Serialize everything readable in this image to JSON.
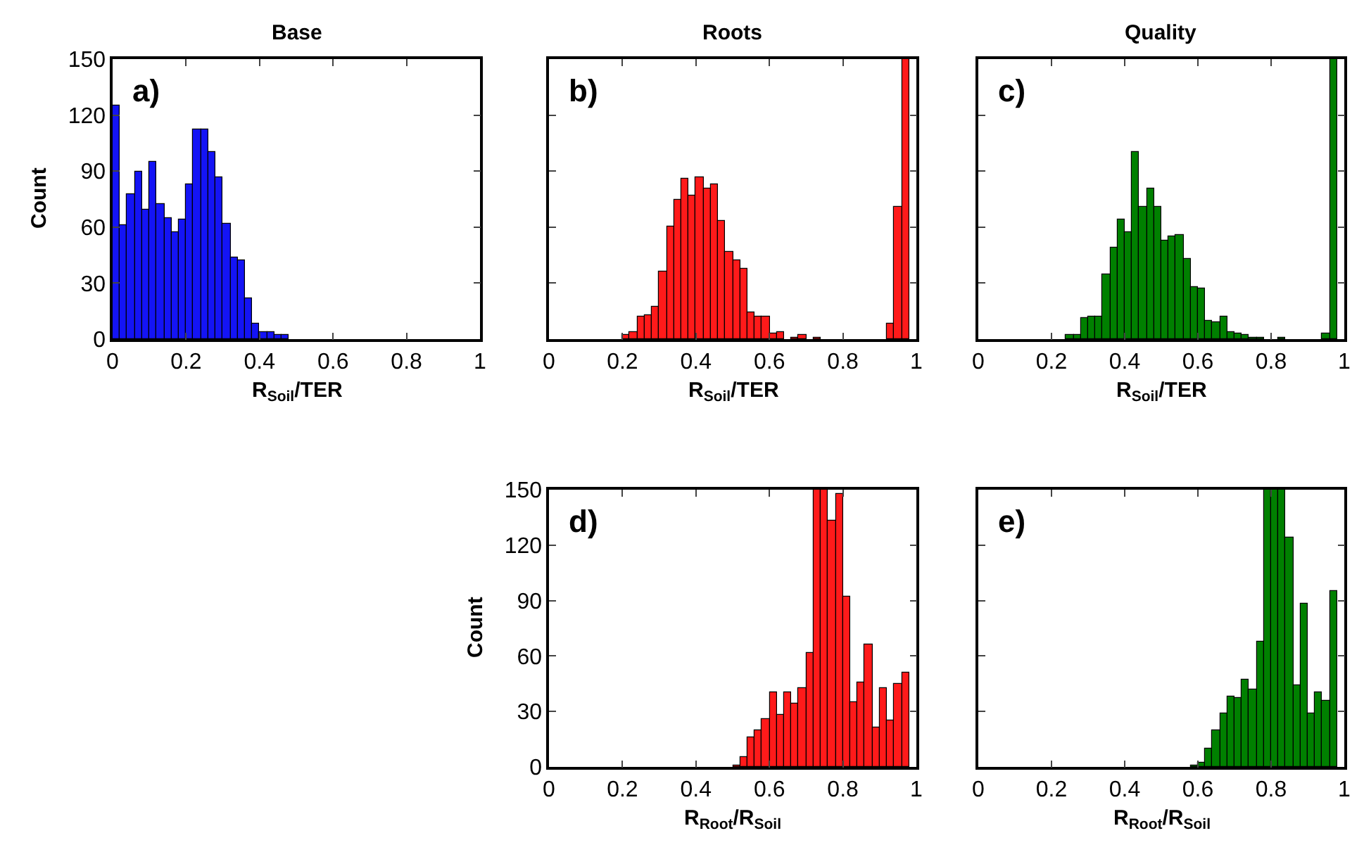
{
  "chart_data": [
    {
      "type": "histogram",
      "title": "Base",
      "xlabel": "R$_{Soil}$/TER",
      "ylabel": "Count",
      "annotations": [
        "a)"
      ],
      "color": "#1414f5",
      "bins": [
        0,
        0.02,
        0.04,
        0.06,
        0.08,
        0.1,
        0.12,
        0.14,
        0.16,
        0.18,
        0.2,
        0.22,
        0.24,
        0.26,
        0.28,
        0.3,
        0.32,
        0.34,
        0.36,
        0.38,
        0.4,
        0.42,
        0.44,
        0.46,
        0.48
      ],
      "values": [
        125,
        61,
        78,
        90,
        69,
        95,
        72,
        65,
        57,
        64,
        83,
        112,
        112,
        100,
        87,
        62,
        44,
        42,
        22,
        8,
        4,
        4,
        2,
        2
      ],
      "xlim": [
        0,
        1
      ],
      "ylim": [
        0,
        150
      ],
      "xticks": [
        0,
        0.2,
        0.4,
        0.6,
        0.8,
        1
      ],
      "yticks": [
        0,
        30,
        60,
        90,
        120,
        150
      ]
    },
    {
      "type": "histogram",
      "title": "Roots",
      "xlabel": "R$_{Soil}$/TER",
      "annotations": [
        "b)"
      ],
      "color": "#ff1a1a",
      "tick_labels": "x",
      "bins": [
        0.2,
        0.22,
        0.24,
        0.26,
        0.28,
        0.3,
        0.32,
        0.34,
        0.36,
        0.38,
        0.4,
        0.42,
        0.44,
        0.46,
        0.48,
        0.5,
        0.52,
        0.54,
        0.56,
        0.58,
        0.6,
        0.62,
        0.64,
        0.66,
        0.68,
        0.7,
        0.72,
        0.74,
        0.76,
        0.78,
        0.8,
        0.82,
        0.84,
        0.86,
        0.88,
        0.9,
        0.92,
        0.94,
        0.96,
        0.98
      ],
      "values": [
        2,
        4,
        12,
        13,
        17,
        36,
        60,
        75,
        86,
        77,
        87,
        81,
        83,
        63,
        47,
        42,
        38,
        14,
        12,
        12,
        3,
        4,
        0,
        1,
        2,
        0,
        1,
        0,
        0,
        0,
        0,
        0,
        0,
        0,
        0,
        0,
        8,
        71,
        150
      ],
      "xlim": [
        0,
        1
      ],
      "ylim": [
        0,
        150
      ],
      "xticks": [
        0,
        0.2,
        0.4,
        0.6,
        0.8,
        1
      ],
      "yticks": [
        0,
        30,
        60,
        90,
        120,
        150
      ]
    },
    {
      "type": "histogram",
      "title": "Quality",
      "xlabel": "R$_{Soil}$/TER",
      "annotations": [
        "c)"
      ],
      "color": "#008000",
      "tick_labels": "x",
      "bins": [
        0.24,
        0.26,
        0.28,
        0.3,
        0.32,
        0.34,
        0.36,
        0.38,
        0.4,
        0.42,
        0.44,
        0.46,
        0.48,
        0.5,
        0.52,
        0.54,
        0.56,
        0.58,
        0.6,
        0.62,
        0.64,
        0.66,
        0.68,
        0.7,
        0.72,
        0.74,
        0.76,
        0.78,
        0.8,
        0.82,
        0.84,
        0.86,
        0.88,
        0.9,
        0.92,
        0.94,
        0.96,
        0.98
      ],
      "values": [
        2,
        2,
        11,
        12,
        12,
        35,
        49,
        64,
        57,
        100,
        71,
        81,
        71,
        53,
        55,
        56,
        43,
        28,
        27,
        10,
        9,
        12,
        4,
        3,
        2,
        1,
        1,
        0,
        0,
        1,
        0,
        0,
        0,
        0,
        0,
        3,
        150
      ],
      "xlim": [
        0,
        1
      ],
      "ylim": [
        0,
        150
      ],
      "xticks": [
        0,
        0.2,
        0.4,
        0.6,
        0.8,
        1
      ],
      "yticks": [
        0,
        30,
        60,
        90,
        120,
        150
      ]
    },
    {
      "type": "histogram",
      "xlabel": "R$_{Root}$/R$_{Soil}$",
      "ylabel": "Count",
      "annotations": [
        "d)"
      ],
      "color": "#ff1a1a",
      "bins": [
        0.5,
        0.52,
        0.54,
        0.56,
        0.58,
        0.6,
        0.62,
        0.64,
        0.66,
        0.68,
        0.7,
        0.72,
        0.74,
        0.76,
        0.78,
        0.8,
        0.82,
        0.84,
        0.86,
        0.88,
        0.9,
        0.92,
        0.94,
        0.96,
        0.98
      ],
      "values": [
        1,
        5,
        16,
        20,
        26,
        40,
        28,
        40,
        34,
        43,
        62,
        150,
        150,
        133,
        148,
        92,
        35,
        46,
        66,
        21,
        43,
        25,
        45,
        51
      ],
      "xlim": [
        0,
        1
      ],
      "ylim": [
        0,
        150
      ],
      "xticks": [
        0,
        0.2,
        0.4,
        0.6,
        0.8,
        1
      ],
      "yticks": [
        0,
        30,
        60,
        90,
        120,
        150
      ]
    },
    {
      "type": "histogram",
      "xlabel": "R$_{Root}$/R$_{Soil}$",
      "annotations": [
        "e)"
      ],
      "color": "#008000",
      "tick_labels": "x",
      "bins": [
        0.58,
        0.6,
        0.62,
        0.64,
        0.66,
        0.68,
        0.7,
        0.72,
        0.74,
        0.76,
        0.78,
        0.8,
        0.82,
        0.84,
        0.86,
        0.88,
        0.9,
        0.92,
        0.94,
        0.96,
        0.98
      ],
      "values": [
        1,
        2,
        10,
        20,
        29,
        38,
        37,
        47,
        42,
        68,
        150,
        150,
        150,
        124,
        44,
        88,
        29,
        40,
        36,
        95
      ],
      "xlim": [
        0,
        1
      ],
      "ylim": [
        0,
        150
      ],
      "xticks": [
        0,
        0.2,
        0.4,
        0.6,
        0.8,
        1
      ],
      "yticks": [
        0,
        30,
        60,
        90,
        120,
        150
      ]
    }
  ]
}
